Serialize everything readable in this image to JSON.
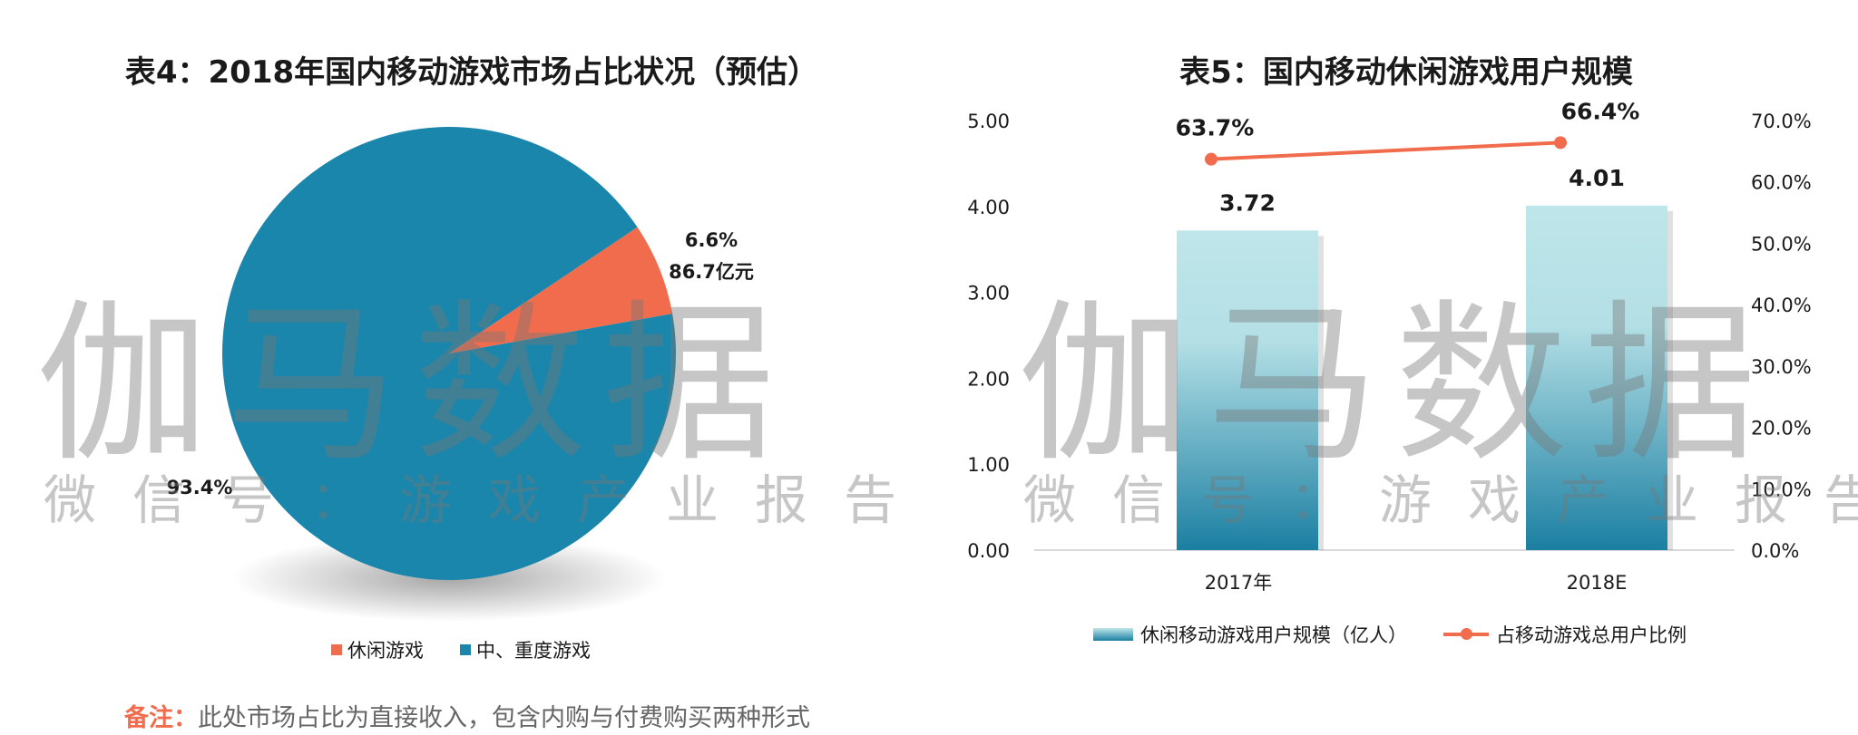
{
  "left_chart": {
    "title": "表4：2018年国内移动游戏市场占比状况（预估）",
    "legend": [
      {
        "label": "休闲游戏",
        "color": "#f06c4c"
      },
      {
        "label": "中、重度游戏",
        "color": "#1a86ab"
      }
    ],
    "small_slice_pct_label": "6.6%",
    "small_slice_amount_label": "86.7亿元",
    "large_slice_pct_label": "93.4%"
  },
  "right_chart": {
    "title": "表5：国内移动休闲游戏用户规模",
    "legend_bar": "休闲移动游戏用户规模（亿人）",
    "legend_line": "占移动游戏总用户比例",
    "left_ticks": [
      "0.00",
      "1.00",
      "2.00",
      "3.00",
      "4.00",
      "5.00"
    ],
    "right_ticks": [
      "0.0%",
      "10.0%",
      "20.0%",
      "30.0%",
      "40.0%",
      "50.0%",
      "60.0%",
      "70.0%"
    ],
    "categories": [
      "2017年",
      "2018E"
    ],
    "bar_labels": [
      "3.72",
      "4.01"
    ],
    "line_labels": [
      "63.7%",
      "66.4%"
    ]
  },
  "note": {
    "label": "备注：",
    "text": "此处市场占比为直接收入，包含内购与付费购买两种形式"
  },
  "watermark": {
    "main": "伽马数据",
    "sub": "微信号：游戏产业报告"
  },
  "colors": {
    "pie_major": "#1a86ab",
    "pie_minor": "#f06c4c",
    "line": "#f06c4c",
    "bar_top": "#bfe6ea",
    "bar_bottom": "#1b7fa2"
  },
  "chart_data": [
    {
      "type": "pie",
      "title": "表4：2018年国内移动游戏市场占比状况（预估）",
      "labels": [
        "休闲游戏",
        "中、重度游戏"
      ],
      "values": [
        6.6,
        93.4
      ],
      "annotations": [
        "6.6%",
        "86.7亿元",
        "93.4%"
      ],
      "legend": "bottom"
    },
    {
      "type": "bar",
      "title": "表5：国内移动休闲游戏用户规模",
      "categories": [
        "2017年",
        "2018E"
      ],
      "series": [
        {
          "name": "休闲移动游戏用户规模（亿人）",
          "type": "bar",
          "axis": "left",
          "values": [
            3.72,
            4.01
          ]
        },
        {
          "name": "占移动游戏总用户比例",
          "type": "line",
          "axis": "right",
          "values": [
            63.7,
            66.4
          ]
        }
      ],
      "ylim": [
        0,
        5
      ],
      "y2lim": [
        0,
        70
      ],
      "legend": "bottom",
      "grid": false
    }
  ]
}
